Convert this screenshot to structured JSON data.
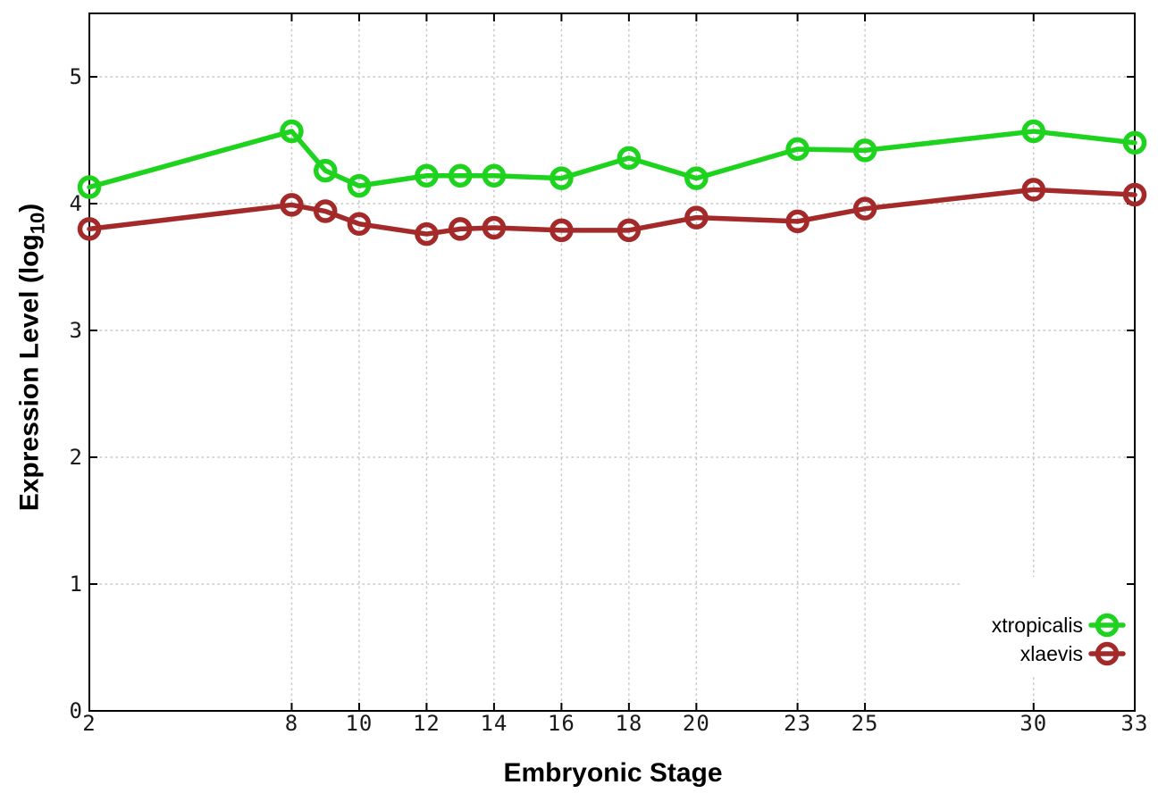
{
  "figure": {
    "background": "#ffffff",
    "border_color": "#000000",
    "grid_color": "#c8c8c8",
    "tick_label_color": "#1a1a1a"
  },
  "chart_data": {
    "type": "line",
    "title": "",
    "xlabel": "Embryonic Stage",
    "ylabel": {
      "prefix": "Expression Level (log",
      "sub": "10",
      "suffix": ")"
    },
    "x": [
      2,
      8,
      9,
      10,
      12,
      13,
      14,
      16,
      18,
      20,
      23,
      25,
      30,
      33
    ],
    "xticks": [
      2,
      8,
      10,
      12,
      14,
      16,
      18,
      20,
      23,
      25,
      30,
      33
    ],
    "yticks": [
      0,
      1,
      2,
      3,
      4,
      5
    ],
    "xlim": [
      2,
      33
    ],
    "ylim": [
      0,
      5.5
    ],
    "grid": true,
    "legend": {
      "position": "inside-bottom-right",
      "marker": "open-circle-on-line"
    },
    "series": [
      {
        "name": "xtropicalis",
        "color": "#1ed31e",
        "marker": "open-circle",
        "values": [
          4.13,
          4.57,
          4.26,
          4.14,
          4.22,
          4.22,
          4.22,
          4.2,
          4.36,
          4.2,
          4.43,
          4.42,
          4.57,
          4.48
        ]
      },
      {
        "name": "xlaevis",
        "color": "#a42a2a",
        "marker": "open-circle",
        "values": [
          3.8,
          3.99,
          3.94,
          3.84,
          3.76,
          3.8,
          3.81,
          3.79,
          3.79,
          3.89,
          3.86,
          3.96,
          4.11,
          4.07
        ]
      }
    ]
  }
}
